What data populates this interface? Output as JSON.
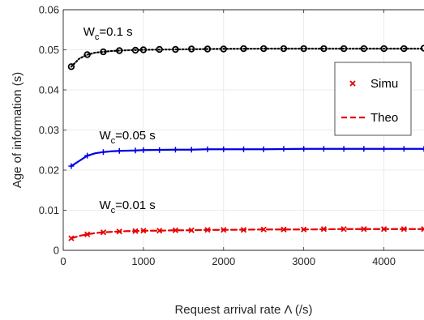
{
  "chart_data": {
    "type": "line",
    "xlabel": "Request arrival rate  Λ (/s)",
    "ylabel": "Age of information (s)",
    "xlim": [
      0,
      4500
    ],
    "ylim": [
      0,
      0.06
    ],
    "xticks": [
      0,
      1000,
      2000,
      3000,
      4000
    ],
    "xtick_labels": [
      "0",
      "1000",
      "2000",
      "3000",
      "4000"
    ],
    "yticks": [
      0,
      0.01,
      0.02,
      0.03,
      0.04,
      0.05,
      0.06
    ],
    "ytick_labels": [
      "0",
      "0.01",
      "0.02",
      "0.03",
      "0.04",
      "0.05",
      "0.06"
    ],
    "grid": true,
    "legend_position": "right",
    "legend": [
      {
        "label": "Simu",
        "marker": "x",
        "linestyle": "none"
      },
      {
        "label": "Theo",
        "marker": "none",
        "linestyle": "dashed"
      }
    ],
    "annotations": [
      {
        "main": "W",
        "sub": "c",
        "rest": "=0.1 s",
        "x": 250,
        "y": 0.0535
      },
      {
        "main": "W",
        "sub": "c",
        "rest": "=0.05 s",
        "x": 450,
        "y": 0.0277
      },
      {
        "main": "W",
        "sub": "c",
        "rest": "=0.01 s",
        "x": 450,
        "y": 0.0103
      }
    ],
    "series": [
      {
        "color": "#000000",
        "line_style": "dotted",
        "marker": "o",
        "theo_x": [
          100,
          200,
          300,
          400,
          500,
          600,
          700,
          800,
          900,
          1000,
          1200,
          1400,
          1600,
          1800,
          2000,
          2500,
          3000,
          3500,
          4000,
          4500
        ],
        "theo_y": [
          0.0458,
          0.0478,
          0.0488,
          0.0493,
          0.0495,
          0.0497,
          0.0498,
          0.0499,
          0.04995,
          0.05,
          0.05005,
          0.0501,
          0.05015,
          0.0502,
          0.05025,
          0.0503,
          0.0503,
          0.0503,
          0.0503,
          0.0503
        ],
        "simu_x": [
          100,
          300,
          500,
          700,
          900,
          1000,
          1200,
          1400,
          1600,
          1800,
          2000,
          2250,
          2500,
          2750,
          3000,
          3250,
          3500,
          3750,
          4000,
          4250,
          4500
        ],
        "simu_y": [
          0.0458,
          0.0488,
          0.0495,
          0.0498,
          0.0499,
          0.05,
          0.0501,
          0.0501,
          0.0502,
          0.0502,
          0.0502,
          0.0503,
          0.0503,
          0.0503,
          0.0503,
          0.0503,
          0.0503,
          0.0503,
          0.0503,
          0.0503,
          0.0504
        ]
      },
      {
        "color": "#0000e6",
        "line_style": "solid",
        "marker": "+",
        "theo_x": [
          100,
          200,
          300,
          400,
          500,
          600,
          700,
          800,
          900,
          1000,
          1200,
          1400,
          1600,
          1800,
          2000,
          2500,
          3000,
          3500,
          4000,
          4500
        ],
        "theo_y": [
          0.021,
          0.0223,
          0.0236,
          0.0242,
          0.0245,
          0.0247,
          0.0248,
          0.02485,
          0.0249,
          0.025,
          0.02505,
          0.0251,
          0.0251,
          0.0252,
          0.0252,
          0.0252,
          0.0253,
          0.0253,
          0.0253,
          0.0253
        ],
        "simu_x": [
          100,
          300,
          500,
          700,
          900,
          1000,
          1200,
          1400,
          1600,
          1800,
          2000,
          2250,
          2500,
          2750,
          3000,
          3250,
          3500,
          3750,
          4000,
          4250,
          4500
        ],
        "simu_y": [
          0.021,
          0.0236,
          0.0245,
          0.0248,
          0.0249,
          0.025,
          0.025,
          0.0251,
          0.0251,
          0.0252,
          0.0252,
          0.0252,
          0.0252,
          0.0253,
          0.0253,
          0.0253,
          0.0253,
          0.0253,
          0.0253,
          0.0253,
          0.0253
        ]
      },
      {
        "color": "#e60000",
        "line_style": "dashed",
        "marker": "x",
        "theo_x": [
          100,
          200,
          300,
          400,
          500,
          600,
          700,
          800,
          900,
          1000,
          1200,
          1400,
          1600,
          1800,
          2000,
          2500,
          3000,
          3500,
          4000,
          4500
        ],
        "theo_y": [
          0.003,
          0.0036,
          0.004,
          0.0043,
          0.0045,
          0.0046,
          0.0047,
          0.0048,
          0.0048,
          0.0049,
          0.0049,
          0.005,
          0.005,
          0.0051,
          0.0051,
          0.0052,
          0.0052,
          0.0053,
          0.0053,
          0.0053
        ],
        "simu_x": [
          100,
          300,
          500,
          700,
          900,
          1000,
          1200,
          1400,
          1600,
          1800,
          2000,
          2250,
          2500,
          2750,
          3000,
          3250,
          3500,
          3750,
          4000,
          4250,
          4500
        ],
        "simu_y": [
          0.003,
          0.004,
          0.0045,
          0.0047,
          0.0048,
          0.0049,
          0.0049,
          0.005,
          0.005,
          0.0051,
          0.0051,
          0.0051,
          0.0052,
          0.0052,
          0.0052,
          0.0053,
          0.0053,
          0.0053,
          0.0053,
          0.0053,
          0.0053
        ]
      }
    ]
  }
}
